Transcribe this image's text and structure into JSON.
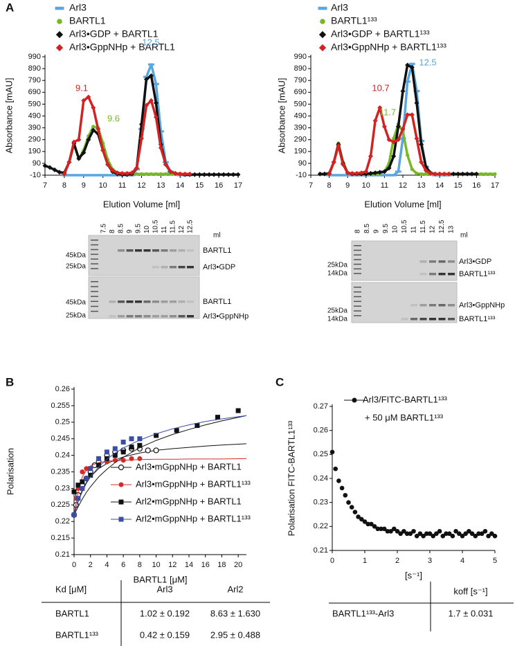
{
  "panel_labels": [
    "A",
    "B",
    "C"
  ],
  "chart_data": [
    {
      "type": "line",
      "xlabel": "Elution Volume [ml]",
      "ylabel": "Absorbance [mAU]",
      "xlim": [
        7,
        17
      ],
      "xticks": [
        7,
        8,
        9,
        10,
        11,
        12,
        13,
        14,
        15,
        16,
        17
      ],
      "ylim": [
        -10,
        990
      ],
      "yticks": [
        -10,
        90,
        190,
        290,
        390,
        490,
        590,
        690,
        790,
        890,
        990
      ],
      "x": [
        7,
        7.25,
        7.5,
        7.75,
        8,
        8.25,
        8.5,
        8.75,
        9,
        9.25,
        9.5,
        9.75,
        10,
        10.25,
        10.5,
        10.75,
        11,
        11.25,
        11.5,
        11.75,
        12,
        12.25,
        12.5,
        12.75,
        13,
        13.25,
        13.5,
        13.75,
        14,
        14.25,
        14.5,
        14.75,
        15,
        15.25,
        15.5,
        15.75,
        16,
        16.25,
        16.5,
        16.75,
        17
      ],
      "series": [
        {
          "name": "Arl3",
          "color": "#5aa6e0",
          "marker": "dash",
          "values": [
            null,
            null,
            null,
            null,
            -10,
            -10,
            -10,
            -10,
            -10,
            -10,
            -10,
            -10,
            -10,
            -10,
            -10,
            -10,
            -10,
            -10,
            -10,
            40,
            380,
            820,
            925,
            760,
            360,
            100,
            20,
            -5,
            -10,
            -10,
            -10,
            null,
            null,
            null,
            null,
            null,
            null,
            null,
            null,
            null,
            null
          ]
        },
        {
          "name": "BARTL1",
          "color": "#77b82a",
          "marker": "circle",
          "values": [
            null,
            null,
            null,
            null,
            0,
            100,
            250,
            130,
            200,
            320,
            400,
            390,
            260,
            120,
            40,
            10,
            0,
            0,
            0,
            0,
            0,
            0,
            0,
            0,
            0,
            0,
            0,
            0,
            0,
            0,
            0,
            null,
            null,
            null,
            null,
            null,
            null,
            null,
            null,
            null,
            null
          ]
        },
        {
          "name": "Arl3•GDP + BARTL1",
          "color": "#111111",
          "marker": "diamond",
          "values": [
            70,
            55,
            35,
            15,
            10,
            100,
            260,
            130,
            180,
            290,
            370,
            340,
            200,
            80,
            20,
            0,
            -5,
            -5,
            0,
            50,
            420,
            800,
            830,
            600,
            250,
            80,
            20,
            5,
            0,
            -5,
            -5,
            -5,
            -5,
            -5,
            -5,
            -5,
            -5,
            -5,
            -5,
            -5,
            -5
          ]
        },
        {
          "name": "Arl3•GppNHp + BARTL1",
          "color": "#d32222",
          "marker": "diamond",
          "values": [
            null,
            null,
            null,
            null,
            0,
            100,
            270,
            290,
            620,
            650,
            560,
            380,
            200,
            80,
            30,
            10,
            5,
            5,
            10,
            50,
            300,
            580,
            620,
            480,
            220,
            80,
            20,
            5,
            0,
            0,
            0,
            null,
            null,
            null,
            null,
            null,
            null,
            null,
            null,
            null,
            null
          ]
        }
      ],
      "annotations": [
        {
          "text": "12.5",
          "color": "#5aa6e0"
        },
        {
          "text": "9.1",
          "color": "#d32222"
        },
        {
          "text": "9.6",
          "color": "#77b82a"
        }
      ]
    },
    {
      "type": "line",
      "xlabel": "Elution Volume [ml]",
      "ylabel": "Absorbance [mAU]",
      "xlim": [
        7,
        17
      ],
      "xticks": [
        7,
        8,
        9,
        10,
        11,
        12,
        13,
        14,
        15,
        16,
        17
      ],
      "ylim": [
        -10,
        990
      ],
      "yticks": [
        -10,
        90,
        190,
        290,
        390,
        490,
        590,
        690,
        790,
        890,
        990
      ],
      "x": [
        7,
        7.25,
        7.5,
        7.75,
        8,
        8.25,
        8.5,
        8.75,
        9,
        9.25,
        9.5,
        9.75,
        10,
        10.25,
        10.5,
        10.75,
        11,
        11.25,
        11.5,
        11.75,
        12,
        12.25,
        12.5,
        12.75,
        13,
        13.25,
        13.5,
        13.75,
        14,
        14.25,
        14.5,
        14.75,
        15,
        15.25,
        15.5,
        15.75,
        16,
        16.25,
        16.5,
        16.75,
        17
      ],
      "series": [
        {
          "name": "Arl3",
          "color": "#5aa6e0",
          "marker": "dash",
          "values": [
            null,
            null,
            null,
            null,
            -10,
            -10,
            -10,
            -10,
            -10,
            -10,
            -10,
            -10,
            -10,
            -10,
            -10,
            -10,
            -10,
            -10,
            -10,
            20,
            300,
            780,
            930,
            700,
            280,
            60,
            0,
            -10,
            -10,
            -10,
            -10,
            null,
            null,
            null,
            null,
            null,
            null,
            null,
            null,
            null,
            null
          ]
        },
        {
          "name": "BARTL1¹³³",
          "color": "#77b82a",
          "marker": "circle",
          "values": [
            null,
            null,
            null,
            null,
            0,
            100,
            260,
            100,
            10,
            0,
            0,
            0,
            0,
            0,
            0,
            5,
            20,
            90,
            300,
            420,
            360,
            160,
            40,
            5,
            0,
            0,
            0,
            0,
            0,
            0,
            0,
            0,
            0,
            0,
            0,
            0,
            0,
            0,
            0,
            0,
            0
          ]
        },
        {
          "name": "Arl3•GDP + BARTL1¹³³",
          "color": "#111111",
          "marker": "diamond",
          "values": [
            null,
            null,
            0,
            0,
            5,
            100,
            250,
            90,
            10,
            0,
            0,
            0,
            0,
            5,
            10,
            15,
            20,
            50,
            150,
            400,
            700,
            920,
            900,
            600,
            250,
            60,
            10,
            0,
            0,
            0,
            0,
            0,
            0,
            0,
            0,
            0,
            0,
            null,
            null,
            null,
            null
          ]
        },
        {
          "name": "Arl3•GppNHp + BARTL1¹³³",
          "color": "#d32222",
          "marker": "diamond",
          "values": [
            null,
            null,
            null,
            null,
            0,
            100,
            240,
            80,
            10,
            5,
            5,
            10,
            20,
            150,
            450,
            560,
            400,
            290,
            270,
            290,
            380,
            500,
            500,
            300,
            100,
            30,
            5,
            0,
            0,
            0,
            0,
            null,
            null,
            null,
            null,
            null,
            null,
            null,
            null,
            null,
            null
          ]
        }
      ],
      "annotations": [
        {
          "text": "12.5",
          "color": "#5aa6e0"
        },
        {
          "text": "10.7",
          "color": "#d32222"
        },
        {
          "text": "11.7",
          "color": "#77b82a"
        }
      ]
    },
    {
      "type": "scatter",
      "xlabel": "BARTL1 [μM]",
      "ylabel": "Polarisation",
      "xlim": [
        0,
        21
      ],
      "xticks": [
        0,
        2,
        4,
        6,
        8,
        10,
        12,
        14,
        16,
        18,
        20
      ],
      "ylim": [
        0.21,
        0.26
      ],
      "yticks": [
        0.21,
        0.215,
        0.22,
        0.225,
        0.23,
        0.235,
        0.24,
        0.245,
        0.25,
        0.255,
        0.26
      ],
      "fit_x": [
        0,
        0.5,
        1,
        1.5,
        2,
        3,
        4,
        5,
        6,
        8,
        10,
        12,
        14,
        16,
        18,
        21
      ],
      "series": [
        {
          "name": "Arl3•mGppNHp + BARTL1",
          "color": "#111111",
          "marker": "open-circle",
          "x": [
            0,
            0.25,
            0.5,
            1,
            1.5,
            2,
            2.5,
            3,
            4,
            5,
            6,
            7,
            8,
            9,
            10
          ],
          "values": [
            0.222,
            0.225,
            0.228,
            0.231,
            0.233,
            0.235,
            0.237,
            0.238,
            0.24,
            0.241,
            0.2415,
            0.242,
            0.242,
            0.2415,
            0.2415
          ],
          "fit": [
            0.222,
            0.2265,
            0.2295,
            0.2318,
            0.2335,
            0.236,
            0.2375,
            0.2386,
            0.2395,
            0.2407,
            0.2415,
            0.242,
            0.2424,
            0.2428,
            0.2431,
            0.2435
          ]
        },
        {
          "name": "Arl3•mGppNHp + BARTL1¹³³",
          "color": "#d42a2a",
          "marker": "circle",
          "x": [
            0,
            0.25,
            0.5,
            1,
            1.5,
            2,
            3,
            4,
            5,
            6,
            7,
            8
          ],
          "values": [
            0.222,
            0.227,
            0.23,
            0.235,
            0.236,
            0.236,
            0.237,
            0.238,
            0.2385,
            0.2385,
            0.239,
            0.239
          ],
          "fit": [
            0.222,
            0.229,
            0.2335,
            0.2355,
            0.2368,
            0.2378,
            0.2382,
            0.2384,
            0.2385,
            0.2387,
            0.2388,
            0.2388,
            0.2389,
            0.2389,
            0.2389,
            0.239
          ]
        },
        {
          "name": "Arl2•mGppNHp + BARTL1",
          "color": "#111111",
          "marker": "square",
          "x": [
            0,
            0.5,
            1,
            2,
            3,
            4,
            5,
            6,
            7,
            8,
            10,
            12.5,
            15,
            17.5,
            20
          ],
          "values": [
            0.229,
            0.231,
            0.232,
            0.234,
            0.237,
            0.239,
            0.24,
            0.241,
            0.2425,
            0.243,
            0.246,
            0.2475,
            0.249,
            0.2515,
            0.2535
          ],
          "fit": [
            0.222,
            0.2245,
            0.2268,
            0.2288,
            0.2305,
            0.2335,
            0.2358,
            0.2378,
            0.2394,
            0.2423,
            0.2445,
            0.2463,
            0.2478,
            0.2492,
            0.2504,
            0.252
          ]
        },
        {
          "name": "Arl2•mGppNHp + BARTL1¹³³",
          "color": "#3a4da8",
          "marker": "square",
          "x": [
            0,
            0.5,
            1,
            1.5,
            2,
            3,
            4,
            5,
            6,
            7,
            8
          ],
          "values": [
            0.222,
            0.227,
            0.23,
            0.233,
            0.236,
            0.239,
            0.241,
            0.242,
            0.244,
            0.245,
            0.245
          ],
          "fit": [
            0.222,
            0.226,
            0.229,
            0.2315,
            0.2335,
            0.2365,
            0.2388,
            0.2407,
            0.2422,
            0.2446,
            0.2465,
            0.248,
            0.2492,
            0.2502,
            0.251,
            0.252
          ]
        }
      ]
    },
    {
      "type": "scatter",
      "xlabel": "[s⁻¹]",
      "ylabel": "Polarisation FITC-BARTL1¹³³",
      "xlim": [
        0,
        5
      ],
      "xticks": [
        0,
        1,
        2,
        3,
        4,
        5
      ],
      "ylim": [
        0.21,
        0.27
      ],
      "yticks": [
        0.21,
        0.22,
        0.23,
        0.24,
        0.25,
        0.26,
        0.27
      ],
      "x": [
        0,
        0.1,
        0.2,
        0.3,
        0.4,
        0.5,
        0.6,
        0.7,
        0.8,
        0.9,
        1,
        1.1,
        1.2,
        1.3,
        1.4,
        1.5,
        1.6,
        1.7,
        1.8,
        1.9,
        2,
        2.1,
        2.2,
        2.3,
        2.4,
        2.5,
        2.6,
        2.7,
        2.8,
        2.9,
        3,
        3.1,
        3.2,
        3.3,
        3.4,
        3.5,
        3.6,
        3.7,
        3.8,
        3.9,
        4,
        4.1,
        4.2,
        4.3,
        4.4,
        4.5,
        4.6,
        4.7,
        4.8,
        4.9,
        5
      ],
      "legend_note": "+ 50 μM BARTL1¹³³",
      "series": [
        {
          "name": "Arl3/FITC-BARTL1¹³³",
          "color": "#111111",
          "marker": "circle",
          "values": [
            0.251,
            0.244,
            0.239,
            0.236,
            0.233,
            0.23,
            0.228,
            0.226,
            0.224,
            0.223,
            0.222,
            0.221,
            0.221,
            0.22,
            0.219,
            0.219,
            0.219,
            0.218,
            0.218,
            0.219,
            0.218,
            0.217,
            0.218,
            0.217,
            0.217,
            0.218,
            0.216,
            0.217,
            0.216,
            0.217,
            0.217,
            0.216,
            0.217,
            0.218,
            0.216,
            0.217,
            0.217,
            0.216,
            0.218,
            0.217,
            0.216,
            0.217,
            0.218,
            0.217,
            0.216,
            0.217,
            0.217,
            0.218,
            0.216,
            0.217,
            0.216
          ]
        }
      ]
    }
  ],
  "gels": [
    {
      "lanes": [
        "7.5",
        "8",
        "8.5",
        "9",
        "9.5",
        "10",
        "10.5",
        "11",
        "11.5",
        "12",
        "12.5"
      ],
      "unit": "ml",
      "blots": [
        {
          "markers": [
            "45kDa",
            "25kDa"
          ],
          "bands": [
            "BARTL1",
            "Arl3•GDP"
          ]
        },
        {
          "markers": [
            "45kDa",
            "25kDa"
          ],
          "bands": [
            "BARTL1",
            "Arl3•GppNHp"
          ]
        }
      ]
    },
    {
      "lanes": [
        "8",
        "8.5",
        "9",
        "9.5",
        "10",
        "10.5",
        "11",
        "11.5",
        "12",
        "12.5",
        "13"
      ],
      "unit": "ml",
      "blots": [
        {
          "markers": [
            "25kDa",
            "14kDa"
          ],
          "bands": [
            "Arl3•GDP",
            "BARTL1¹³³"
          ]
        },
        {
          "markers": [
            "25kDa",
            "14kDa"
          ],
          "bands": [
            "Arl3•GppNHp",
            "BARTL1¹³³"
          ]
        }
      ]
    }
  ],
  "tables": [
    {
      "header": [
        "Kd [μM]",
        "Arl3",
        "Arl2"
      ],
      "rows": [
        [
          "BARTL1",
          "1.02 ± 0.192",
          "8.63 ± 1.630"
        ],
        [
          "BARTL1¹³³",
          "0.42 ± 0.159",
          "2.95 ± 0.488"
        ]
      ]
    },
    {
      "header": [
        "koff [s⁻¹]"
      ],
      "rows": [
        [
          "BARTL1¹³³-Arl3",
          "1.7 ± 0.031"
        ]
      ]
    }
  ]
}
